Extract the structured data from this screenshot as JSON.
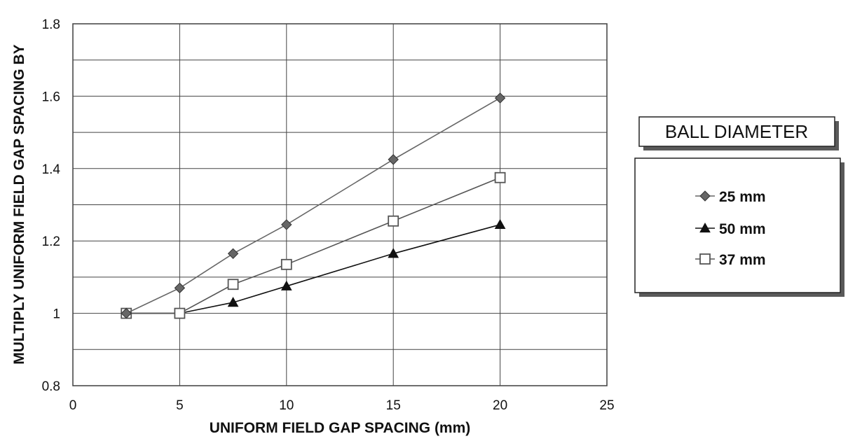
{
  "chart_data": {
    "type": "line",
    "title": "",
    "xlabel": "UNIFORM FIELD GAP SPACING (mm)",
    "ylabel": "MULTIPLY UNIFORM FIELD GAP SPACING BY",
    "xlim": [
      0,
      25
    ],
    "ylim": [
      0.8,
      1.8
    ],
    "x_ticks": [
      "0",
      "5",
      "10",
      "15",
      "20",
      "25"
    ],
    "y_ticks": [
      "0.8",
      "1",
      "1.2",
      "1.4",
      "1.6",
      "1.8"
    ],
    "grid": true,
    "legend_title": "BALL DIAMETER",
    "legend_position": "right",
    "series": [
      {
        "name": "25 mm",
        "marker": "diamond",
        "color": "#666666",
        "x": [
          2.5,
          5,
          7.5,
          10,
          15,
          20
        ],
        "y": [
          1.0,
          1.07,
          1.165,
          1.245,
          1.425,
          1.595
        ]
      },
      {
        "name": "50 mm",
        "marker": "triangle",
        "color": "#111111",
        "x": [
          2.5,
          5,
          7.5,
          10,
          15,
          20
        ],
        "y": [
          1.0,
          1.0,
          1.03,
          1.075,
          1.165,
          1.245
        ]
      },
      {
        "name": "37 mm",
        "marker": "square-open",
        "color": "#555555",
        "x": [
          2.5,
          5,
          7.5,
          10,
          15,
          20
        ],
        "y": [
          1.0,
          1.0,
          1.08,
          1.135,
          1.255,
          1.375
        ]
      }
    ]
  }
}
